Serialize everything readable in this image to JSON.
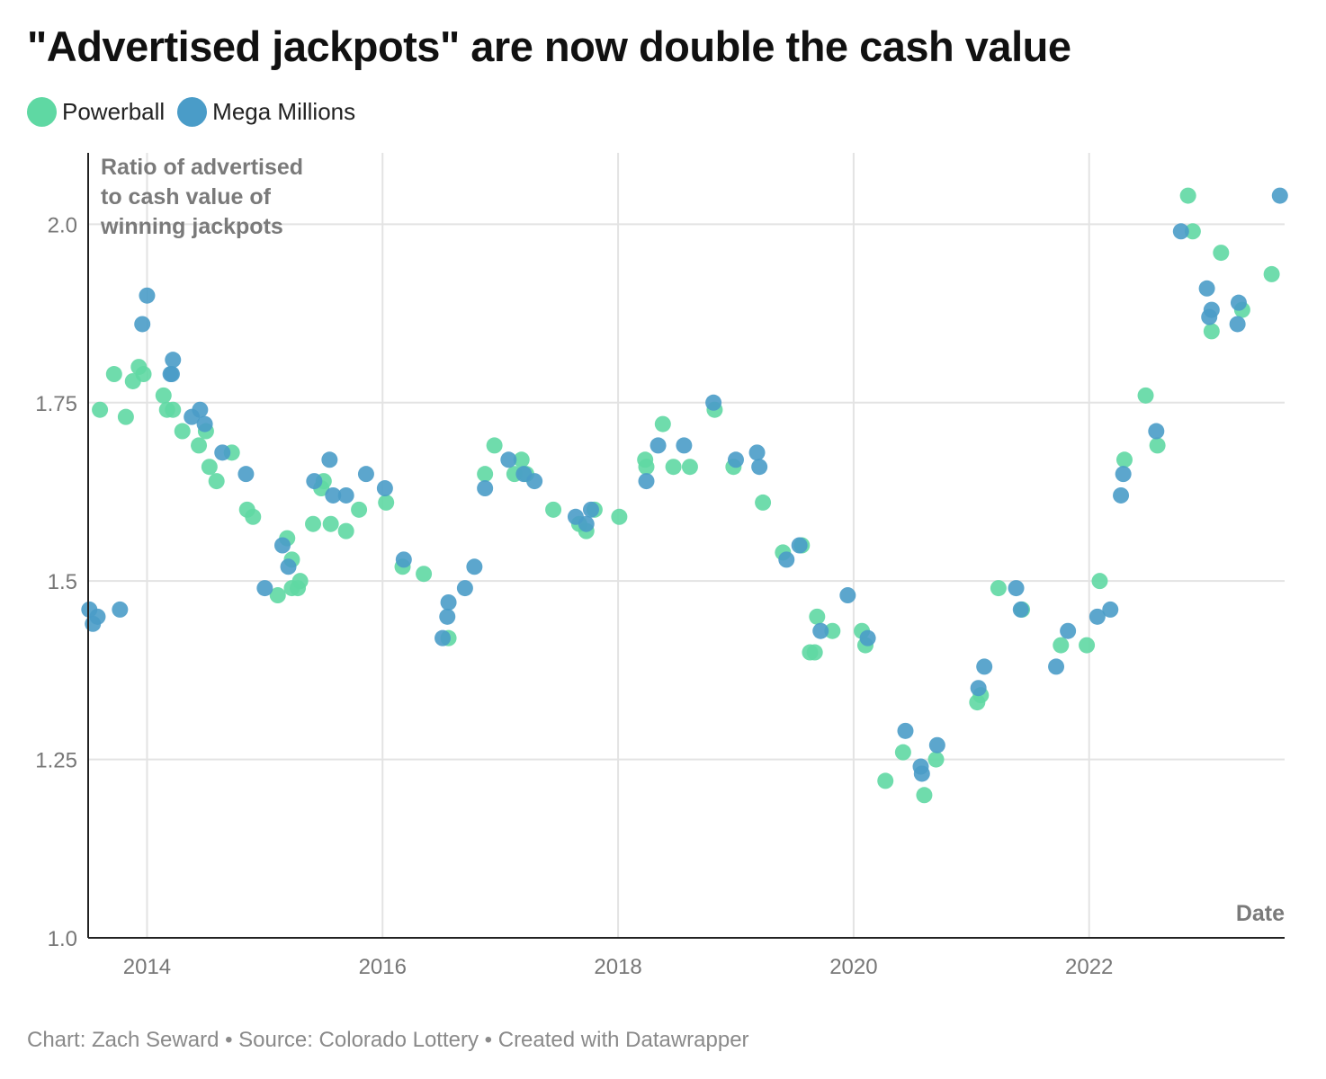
{
  "title": "\"Advertised jackpots\" are now double the cash value",
  "legend": [
    {
      "name": "Powerball",
      "color": "#5fd8a3"
    },
    {
      "name": "Mega Millions",
      "color": "#4a9cc8"
    }
  ],
  "footer": {
    "credit": "Chart: Zach Seward",
    "source": "Source: Colorado Lottery",
    "tool": "Created with Datawrapper",
    "separator": " • "
  },
  "chart_data": {
    "type": "scatter",
    "title": "\"Advertised jackpots\" are now double the cash value",
    "ylabel": "Ratio of advertised to cash value of winning jackpots",
    "ylabel_lines": [
      "Ratio of advertised",
      "to cash value of",
      "winning jackpots"
    ],
    "xlabel": "Date",
    "xlim": [
      2013.5,
      2023.66
    ],
    "ylim": [
      1.0,
      2.1
    ],
    "x_ticks": [
      2014,
      2016,
      2018,
      2020,
      2022
    ],
    "x_tick_labels": [
      "2014",
      "2016",
      "2018",
      "2020",
      "2022"
    ],
    "y_ticks": [
      1.0,
      1.25,
      1.5,
      1.75,
      2.0
    ],
    "y_tick_labels": [
      "1.0",
      "1.25",
      "1.5",
      "1.75",
      "2.0"
    ],
    "grid": true,
    "legend_position": "top-left",
    "series": [
      {
        "name": "Powerball",
        "color": "#5fd8a3",
        "points": [
          [
            2013.6,
            1.74
          ],
          [
            2013.72,
            1.79
          ],
          [
            2013.82,
            1.73
          ],
          [
            2013.88,
            1.78
          ],
          [
            2013.93,
            1.8
          ],
          [
            2013.97,
            1.79
          ],
          [
            2014.14,
            1.76
          ],
          [
            2014.17,
            1.74
          ],
          [
            2014.22,
            1.74
          ],
          [
            2014.3,
            1.71
          ],
          [
            2014.44,
            1.69
          ],
          [
            2014.5,
            1.71
          ],
          [
            2014.53,
            1.66
          ],
          [
            2014.59,
            1.64
          ],
          [
            2014.72,
            1.68
          ],
          [
            2014.85,
            1.6
          ],
          [
            2014.9,
            1.59
          ],
          [
            2015.11,
            1.48
          ],
          [
            2015.19,
            1.56
          ],
          [
            2015.23,
            1.53
          ],
          [
            2015.23,
            1.49
          ],
          [
            2015.28,
            1.49
          ],
          [
            2015.3,
            1.5
          ],
          [
            2015.41,
            1.58
          ],
          [
            2015.48,
            1.63
          ],
          [
            2015.5,
            1.64
          ],
          [
            2015.56,
            1.58
          ],
          [
            2015.69,
            1.57
          ],
          [
            2015.8,
            1.6
          ],
          [
            2016.03,
            1.61
          ],
          [
            2016.17,
            1.52
          ],
          [
            2016.35,
            1.51
          ],
          [
            2016.56,
            1.42
          ],
          [
            2016.87,
            1.65
          ],
          [
            2016.95,
            1.69
          ],
          [
            2017.12,
            1.65
          ],
          [
            2017.18,
            1.67
          ],
          [
            2017.22,
            1.65
          ],
          [
            2017.45,
            1.6
          ],
          [
            2017.67,
            1.58
          ],
          [
            2017.73,
            1.57
          ],
          [
            2017.8,
            1.6
          ],
          [
            2018.01,
            1.59
          ],
          [
            2018.23,
            1.67
          ],
          [
            2018.24,
            1.66
          ],
          [
            2018.38,
            1.72
          ],
          [
            2018.47,
            1.66
          ],
          [
            2018.61,
            1.66
          ],
          [
            2018.82,
            1.74
          ],
          [
            2018.98,
            1.66
          ],
          [
            2019.23,
            1.61
          ],
          [
            2019.4,
            1.54
          ],
          [
            2019.56,
            1.55
          ],
          [
            2019.63,
            1.4
          ],
          [
            2019.67,
            1.4
          ],
          [
            2019.69,
            1.45
          ],
          [
            2019.82,
            1.43
          ],
          [
            2020.07,
            1.43
          ],
          [
            2020.1,
            1.41
          ],
          [
            2020.27,
            1.22
          ],
          [
            2020.42,
            1.26
          ],
          [
            2020.6,
            1.2
          ],
          [
            2020.7,
            1.25
          ],
          [
            2021.05,
            1.33
          ],
          [
            2021.08,
            1.34
          ],
          [
            2021.23,
            1.49
          ],
          [
            2021.43,
            1.46
          ],
          [
            2021.76,
            1.41
          ],
          [
            2021.98,
            1.41
          ],
          [
            2022.09,
            1.5
          ],
          [
            2022.3,
            1.67
          ],
          [
            2022.48,
            1.76
          ],
          [
            2022.58,
            1.69
          ],
          [
            2022.84,
            2.04
          ],
          [
            2022.88,
            1.99
          ],
          [
            2023.04,
            1.85
          ],
          [
            2023.12,
            1.96
          ],
          [
            2023.3,
            1.88
          ],
          [
            2023.55,
            1.93
          ]
        ]
      },
      {
        "name": "Mega Millions",
        "color": "#4a9cc8",
        "points": [
          [
            2013.51,
            1.46
          ],
          [
            2013.54,
            1.44
          ],
          [
            2013.58,
            1.45
          ],
          [
            2013.77,
            1.46
          ],
          [
            2013.96,
            1.86
          ],
          [
            2014.0,
            1.9
          ],
          [
            2014.22,
            1.81
          ],
          [
            2014.2,
            1.79
          ],
          [
            2014.21,
            1.79
          ],
          [
            2014.38,
            1.73
          ],
          [
            2014.45,
            1.74
          ],
          [
            2014.49,
            1.72
          ],
          [
            2014.64,
            1.68
          ],
          [
            2014.84,
            1.65
          ],
          [
            2015.0,
            1.49
          ],
          [
            2015.15,
            1.55
          ],
          [
            2015.2,
            1.52
          ],
          [
            2015.42,
            1.64
          ],
          [
            2015.55,
            1.67
          ],
          [
            2015.58,
            1.62
          ],
          [
            2015.69,
            1.62
          ],
          [
            2015.86,
            1.65
          ],
          [
            2016.02,
            1.63
          ],
          [
            2016.18,
            1.53
          ],
          [
            2016.51,
            1.42
          ],
          [
            2016.55,
            1.45
          ],
          [
            2016.56,
            1.47
          ],
          [
            2016.7,
            1.49
          ],
          [
            2016.78,
            1.52
          ],
          [
            2016.87,
            1.63
          ],
          [
            2017.07,
            1.67
          ],
          [
            2017.2,
            1.65
          ],
          [
            2017.29,
            1.64
          ],
          [
            2017.64,
            1.59
          ],
          [
            2017.73,
            1.58
          ],
          [
            2017.77,
            1.6
          ],
          [
            2018.24,
            1.64
          ],
          [
            2018.34,
            1.69
          ],
          [
            2018.56,
            1.69
          ],
          [
            2018.81,
            1.75
          ],
          [
            2019.0,
            1.67
          ],
          [
            2019.18,
            1.68
          ],
          [
            2019.2,
            1.66
          ],
          [
            2019.43,
            1.53
          ],
          [
            2019.54,
            1.55
          ],
          [
            2019.72,
            1.43
          ],
          [
            2019.95,
            1.48
          ],
          [
            2020.12,
            1.42
          ],
          [
            2020.44,
            1.29
          ],
          [
            2020.57,
            1.24
          ],
          [
            2020.58,
            1.23
          ],
          [
            2020.71,
            1.27
          ],
          [
            2021.06,
            1.35
          ],
          [
            2021.11,
            1.38
          ],
          [
            2021.38,
            1.49
          ],
          [
            2021.42,
            1.46
          ],
          [
            2021.72,
            1.38
          ],
          [
            2021.82,
            1.43
          ],
          [
            2022.07,
            1.45
          ],
          [
            2022.18,
            1.46
          ],
          [
            2022.27,
            1.62
          ],
          [
            2022.29,
            1.65
          ],
          [
            2022.57,
            1.71
          ],
          [
            2022.78,
            1.99
          ],
          [
            2023.0,
            1.91
          ],
          [
            2023.02,
            1.87
          ],
          [
            2023.04,
            1.88
          ],
          [
            2023.26,
            1.86
          ],
          [
            2023.27,
            1.89
          ],
          [
            2023.62,
            2.04
          ]
        ]
      }
    ]
  }
}
